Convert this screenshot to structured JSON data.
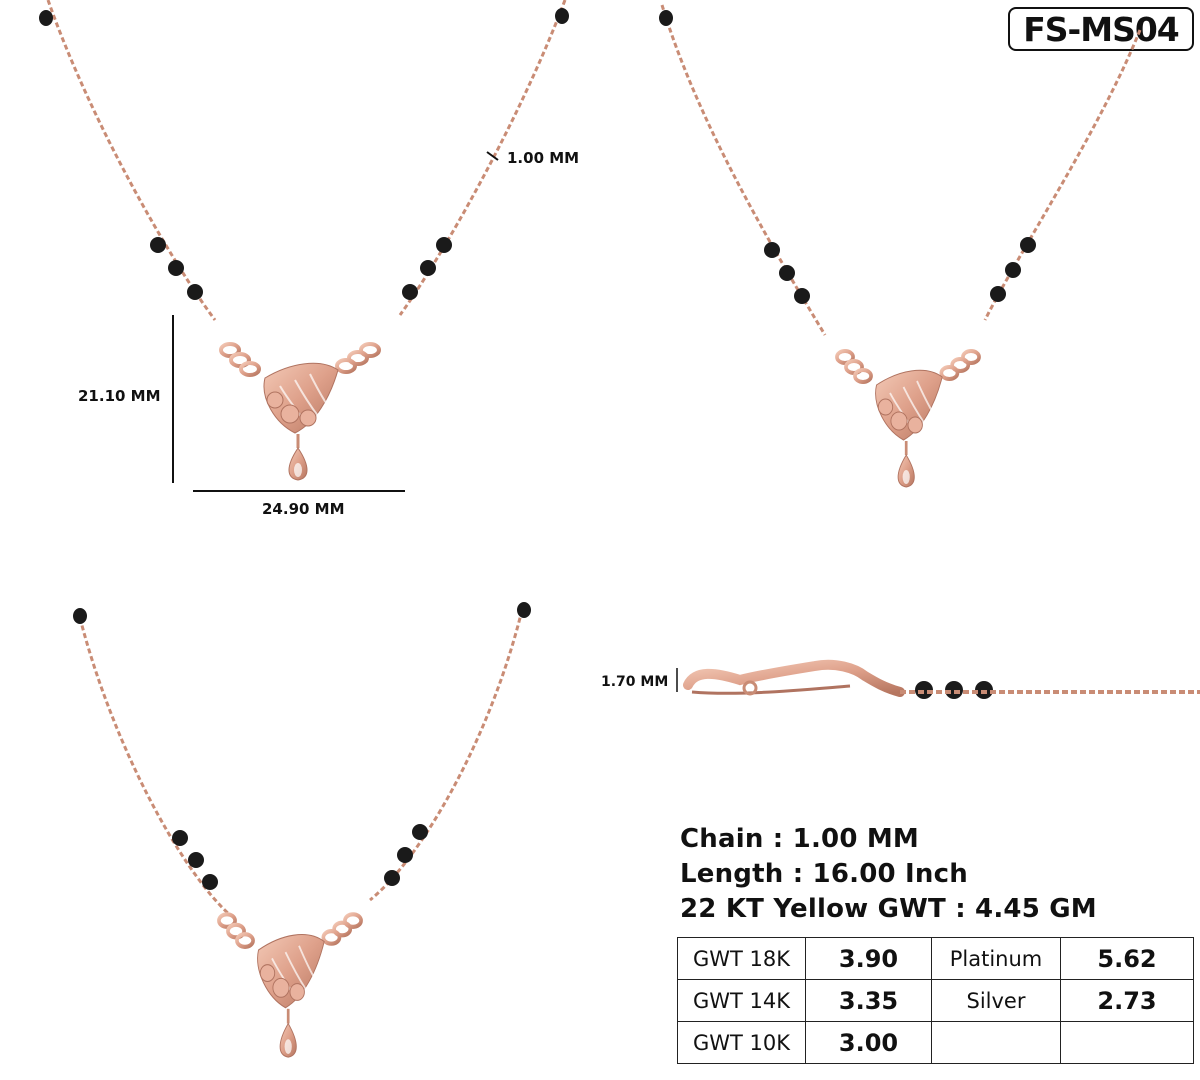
{
  "product_code": "FS-MS04",
  "dimensions": {
    "chain": "1.00 MM",
    "height": "21.10 MM",
    "width": "24.90 MM",
    "thickness": "1.70 MM"
  },
  "specs": {
    "chain": "Chain : 1.00 MM",
    "length": "Length : 16.00 Inch",
    "gwt": "22 KT Yellow GWT : 4.45 GM"
  },
  "weights": {
    "rows": [
      {
        "label": "GWT 18K",
        "value": "3.90",
        "label2": "Platinum",
        "value2": "5.62"
      },
      {
        "label": "GWT 14K",
        "value": "3.35",
        "label2": "Silver",
        "value2": "2.73"
      },
      {
        "label": "GWT 10K",
        "value": "3.00",
        "label2": "",
        "value2": ""
      }
    ]
  },
  "colors": {
    "metal": "#d9a08a",
    "metal_dark": "#b7775f",
    "bead": "#1a1a1a"
  }
}
